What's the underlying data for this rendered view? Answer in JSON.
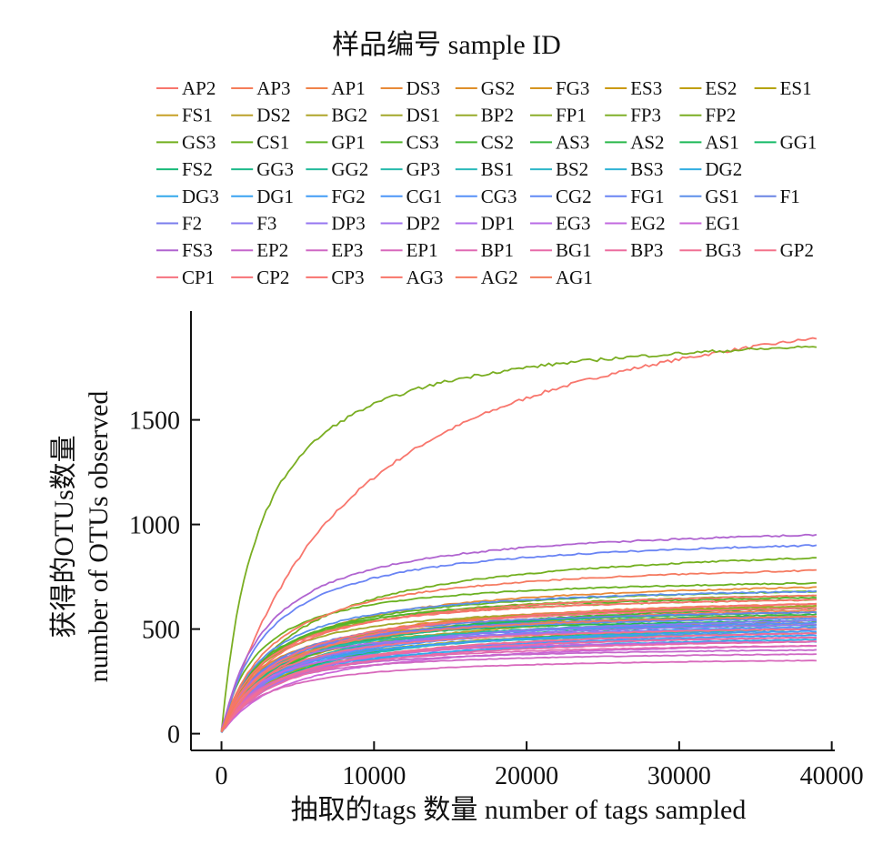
{
  "chart_data": {
    "type": "line",
    "title": "",
    "legend_title": "样品编号 sample ID",
    "legend_position": "top",
    "xlabel": "抽取的tags 数量 number of tags sampled",
    "ylabel": [
      "获得的OTUs数量",
      "number of OTUs observed"
    ],
    "xlim": [
      -2000,
      40200
    ],
    "ylim": [
      -80,
      2020
    ],
    "x_ticks": [
      0,
      10000,
      20000,
      30000,
      40000
    ],
    "x_tick_labels": [
      "0",
      "10000",
      "20000",
      "30000",
      "40000"
    ],
    "y_ticks": [
      0,
      500,
      1000,
      1500
    ],
    "y_tick_labels": [
      "0",
      "500",
      "1000",
      "1500"
    ],
    "grid": false,
    "x_max_sampled": 39000,
    "series": [
      {
        "name": "AP2",
        "final": 1890,
        "color": "#F8766D"
      },
      {
        "name": "AP3",
        "final": 590,
        "color": "#F57D5A"
      },
      {
        "name": "AP1",
        "final": 620,
        "color": "#F0834A"
      },
      {
        "name": "DS3",
        "final": 700,
        "color": "#E88A38"
      },
      {
        "name": "GS2",
        "final": 560,
        "color": "#DF8F2A"
      },
      {
        "name": "FG3",
        "final": 530,
        "color": "#D59520"
      },
      {
        "name": "ES3",
        "final": 610,
        "color": "#CB9A14"
      },
      {
        "name": "ES2",
        "final": 480,
        "color": "#C09F10"
      },
      {
        "name": "ES1",
        "final": 500,
        "color": "#B5A30C"
      },
      {
        "name": "FS1",
        "final": 520,
        "color": "#C7A026"
      },
      {
        "name": "DS2",
        "final": 560,
        "color": "#BBA12A"
      },
      {
        "name": "BG2",
        "final": 580,
        "color": "#AFA52A"
      },
      {
        "name": "DS1",
        "final": 600,
        "color": "#A3A82A"
      },
      {
        "name": "BP2",
        "final": 610,
        "color": "#97AB2A"
      },
      {
        "name": "FP1",
        "final": 640,
        "color": "#8BAE2A"
      },
      {
        "name": "FP3",
        "final": 660,
        "color": "#80B02A"
      },
      {
        "name": "FP2",
        "final": 1850,
        "color": "#7AAE22"
      },
      {
        "name": "GS3",
        "final": 840,
        "color": "#72AF1E"
      },
      {
        "name": "CS1",
        "final": 720,
        "color": "#6AB121"
      },
      {
        "name": "GP1",
        "final": 680,
        "color": "#5FB324"
      },
      {
        "name": "CS3",
        "final": 650,
        "color": "#52B52A"
      },
      {
        "name": "CS2",
        "final": 600,
        "color": "#45B634"
      },
      {
        "name": "AS3",
        "final": 570,
        "color": "#38B73E"
      },
      {
        "name": "AS2",
        "final": 540,
        "color": "#2AB84A"
      },
      {
        "name": "AS1",
        "final": 520,
        "color": "#1DB958"
      },
      {
        "name": "GG1",
        "final": 500,
        "color": "#15BA68"
      },
      {
        "name": "FS2",
        "final": 580,
        "color": "#18BA79"
      },
      {
        "name": "GG3",
        "final": 560,
        "color": "#1DBA8A"
      },
      {
        "name": "GG2",
        "final": 540,
        "color": "#22BA9B"
      },
      {
        "name": "GP3",
        "final": 520,
        "color": "#26BAAB"
      },
      {
        "name": "BS1",
        "final": 500,
        "color": "#2AB9BA"
      },
      {
        "name": "BS2",
        "final": 480,
        "color": "#2DB6C8"
      },
      {
        "name": "BS3",
        "final": 460,
        "color": "#2FB2D5"
      },
      {
        "name": "DG2",
        "final": 450,
        "color": "#31ADE1"
      },
      {
        "name": "DG3",
        "final": 440,
        "color": "#33A8EB"
      },
      {
        "name": "DG1",
        "final": 470,
        "color": "#38A2F2"
      },
      {
        "name": "FG2",
        "final": 490,
        "color": "#419CF6"
      },
      {
        "name": "CG1",
        "final": 510,
        "color": "#4B96F8"
      },
      {
        "name": "CG3",
        "final": 530,
        "color": "#5690F8"
      },
      {
        "name": "CG2",
        "final": 550,
        "color": "#6189F6"
      },
      {
        "name": "FG1",
        "final": 900,
        "color": "#6A84F4"
      },
      {
        "name": "GS1",
        "final": 680,
        "color": "#5C8FEA"
      },
      {
        "name": "F1",
        "final": 580,
        "color": "#6A84E4"
      },
      {
        "name": "F2",
        "final": 560,
        "color": "#7A7DEC"
      },
      {
        "name": "F3",
        "final": 540,
        "color": "#887AF0"
      },
      {
        "name": "DP3",
        "final": 520,
        "color": "#9576F0"
      },
      {
        "name": "DP2",
        "final": 500,
        "color": "#A172EE"
      },
      {
        "name": "DP1",
        "final": 480,
        "color": "#AD6EEB"
      },
      {
        "name": "EG3",
        "final": 460,
        "color": "#B86BE6"
      },
      {
        "name": "EG2",
        "final": 440,
        "color": "#C268DF"
      },
      {
        "name": "EG1",
        "final": 420,
        "color": "#CB66D8"
      },
      {
        "name": "FS3",
        "final": 950,
        "color": "#B064D0"
      },
      {
        "name": "EP2",
        "final": 400,
        "color": "#C567CC"
      },
      {
        "name": "EP3",
        "final": 380,
        "color": "#CF68C4"
      },
      {
        "name": "EP1",
        "final": 350,
        "color": "#D869BC"
      },
      {
        "name": "BP1",
        "final": 420,
        "color": "#E06AB3"
      },
      {
        "name": "BG1",
        "final": 440,
        "color": "#E76BA9"
      },
      {
        "name": "BP3",
        "final": 460,
        "color": "#EC6D9F"
      },
      {
        "name": "BG3",
        "final": 480,
        "color": "#F07094"
      },
      {
        "name": "GP2",
        "final": 500,
        "color": "#F3728A"
      },
      {
        "name": "CP1",
        "final": 600,
        "color": "#F5727F"
      },
      {
        "name": "CP2",
        "final": 620,
        "color": "#F77276"
      },
      {
        "name": "CP3",
        "final": 640,
        "color": "#F8736E"
      },
      {
        "name": "AG3",
        "final": 660,
        "color": "#F87468"
      },
      {
        "name": "AG2",
        "final": 780,
        "color": "#F57A60"
      },
      {
        "name": "AG1",
        "final": 560,
        "color": "#F27C5C"
      }
    ]
  }
}
